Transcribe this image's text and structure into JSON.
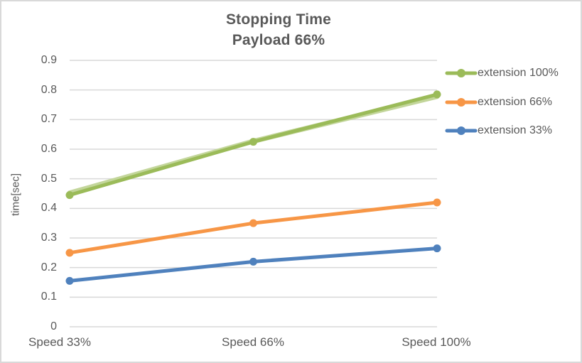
{
  "chart_data": {
    "type": "line",
    "title": "Stopping Time",
    "subtitle": "Payload 66%",
    "ylabel": "time[sec]",
    "xlabel": "",
    "categories": [
      "Speed 33%",
      "Speed 66%",
      "Speed 100%"
    ],
    "series": [
      {
        "name": "extension 100%",
        "color": "#9BBB59",
        "values": [
          0.445,
          0.625,
          0.785
        ],
        "halo_color": "#C3D69B",
        "halo_values": [
          0.452,
          0.627,
          0.778
        ]
      },
      {
        "name": "extension 66%",
        "color": "#F79646",
        "values": [
          0.25,
          0.35,
          0.42
        ]
      },
      {
        "name": "extension 33%",
        "color": "#4F81BD",
        "values": [
          0.155,
          0.22,
          0.265
        ]
      }
    ],
    "ylim": [
      0,
      0.9
    ],
    "yticks": [
      "0",
      "0.1",
      "0.2",
      "0.3",
      "0.4",
      "0.5",
      "0.6",
      "0.7",
      "0.8",
      "0.9"
    ],
    "grid": "horizontal",
    "legend_position": "right",
    "marker": "circle"
  },
  "colors": {
    "text": "#595959",
    "gridline": "#D9D9D9",
    "border": "#D9D9D9",
    "background": "#FFFFFF"
  }
}
